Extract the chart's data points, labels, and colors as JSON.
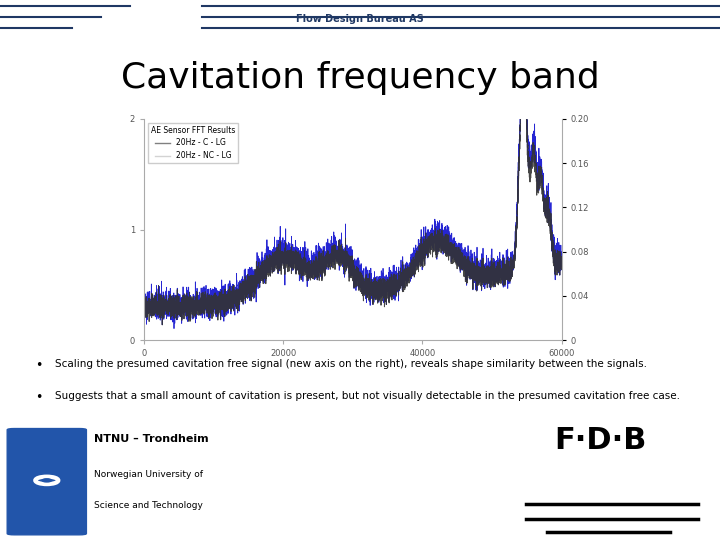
{
  "title": "Cavitation frequency band",
  "header_text": "Flow Design Bureau AS",
  "bullet1": "Scaling the presumed cavitation free signal (new axis on the right), reveals shape similarity between the signals.",
  "bullet2": "Suggests that a small amount of cavitation is present, but not visually detectable in the presumed cavitation free case.",
  "legend_title": "AE Sensor FFT Results",
  "legend1": "20Hz - C - LG",
  "legend2": "20Hz - NC - LG",
  "background": "#ffffff",
  "header_color": "#1f3864",
  "title_color": "#000000",
  "text_color": "#000000",
  "blue_color": "#0000cc",
  "black_color": "#333333",
  "left_ylim": [
    0,
    2
  ],
  "right_ylim": [
    0,
    0.2
  ],
  "xlim": [
    0,
    60000
  ],
  "xticks": [
    0,
    20000,
    40000,
    60000
  ],
  "xtick_labels": [
    "0",
    "20000",
    "40000",
    "60000"
  ],
  "left_yticks": [
    0,
    1,
    2
  ],
  "right_yticks": [
    0,
    0.04,
    0.08,
    0.12,
    0.16,
    0.2
  ]
}
